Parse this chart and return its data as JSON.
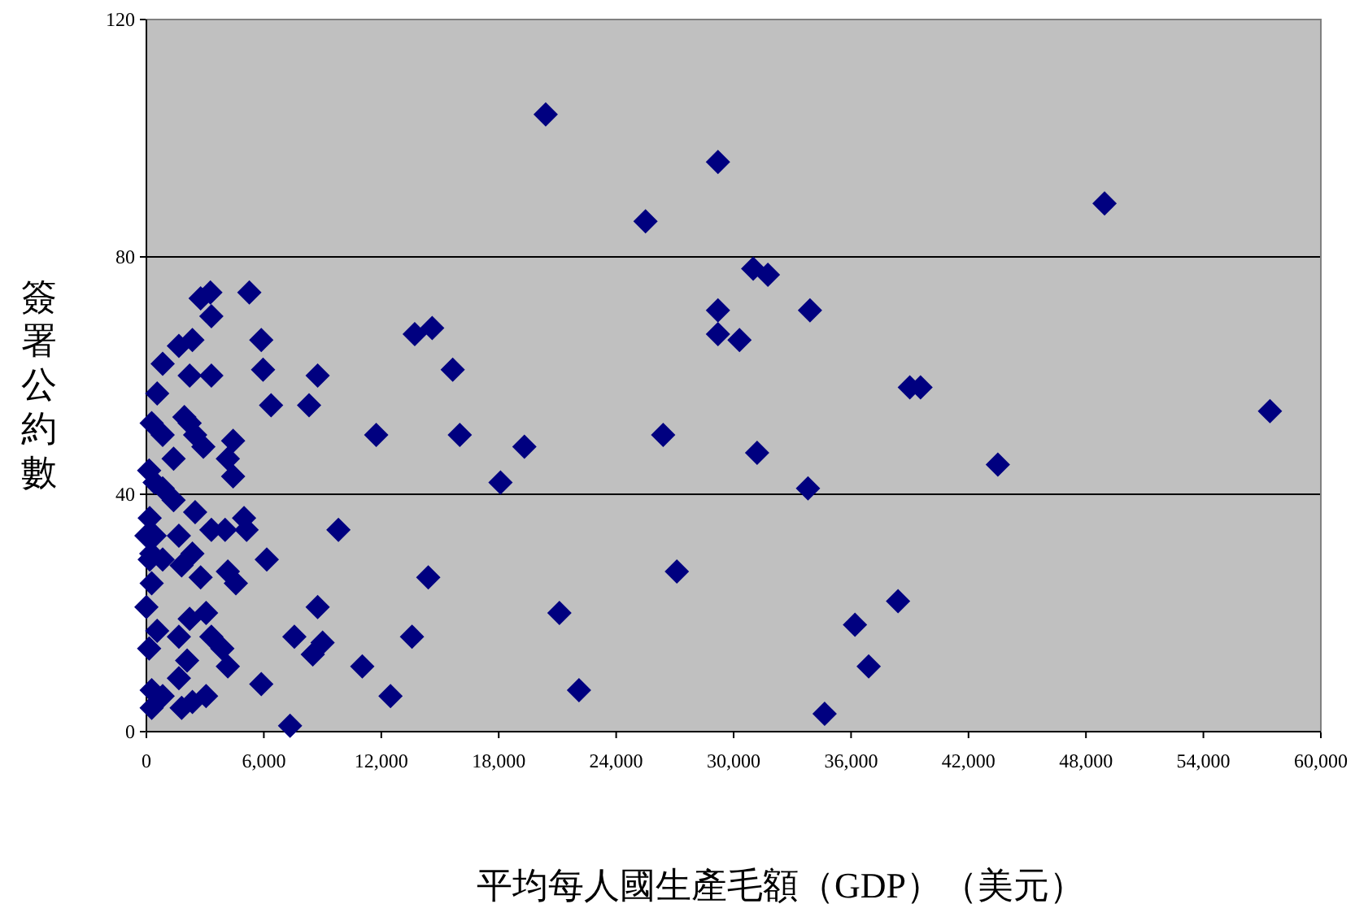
{
  "chart_data": {
    "type": "scatter",
    "xlabel": "平均每人國生產毛額（GDP）（美元）",
    "ylabel": "簽署公約數",
    "color": "#000080",
    "marker": "diamond",
    "grid": "y",
    "xlim": [
      0,
      60000
    ],
    "ylim": [
      0,
      120
    ],
    "xticks": [
      0,
      {
        "value": 6000,
        "label": "6,000"
      },
      {
        "value": 12000,
        "label": "12,000"
      },
      {
        "value": 18000,
        "label": "18,000"
      },
      {
        "value": 24000,
        "label": "24,000"
      },
      {
        "value": 30000,
        "label": "30,000"
      },
      {
        "value": 36000,
        "label": "36,000"
      },
      {
        "value": 42000,
        "label": "42,000"
      },
      {
        "value": 48000,
        "label": "48,000"
      },
      {
        "value": 54000,
        "label": "54,000"
      },
      {
        "value": 60000,
        "label": "60,000"
      }
    ],
    "yticks": [
      0,
      40,
      80,
      120
    ],
    "x": [
      20400,
      29200,
      25500,
      48950,
      31000,
      31750,
      33900,
      29200,
      29200,
      30300,
      39000,
      39550,
      57400,
      26400,
      31200,
      43500,
      33800,
      27100,
      21100,
      36200,
      38400,
      36900,
      22100,
      34650,
      5260,
      5870,
      5960,
      6370,
      8310,
      8750,
      13710,
      14600,
      15650,
      11740,
      16010,
      19310,
      18090,
      9810,
      6150,
      14400,
      8750,
      7560,
      9000,
      8500,
      13570,
      11030,
      5870,
      12470,
      7340,
      4990,
      5120,
      4430,
      4430,
      2770,
      3270,
      3320,
      1660,
      2350,
      830,
      2210,
      3320,
      550,
      270,
      830,
      1940,
      2210,
      2490,
      2910,
      4160,
      1390,
      140,
      420,
      830,
      1390,
      170,
      420,
      250,
      830,
      1660,
      2490,
      3320,
      4020,
      2350,
      1800,
      2770,
      4160,
      4570,
      270,
      0,
      550,
      140,
      2210,
      3050,
      1660,
      3320,
      3880,
      4160,
      2080,
      1660,
      270,
      830,
      270,
      1800,
      2350,
      3050,
      0,
      170
    ],
    "values": [
      104,
      96,
      86,
      89,
      78,
      77,
      71,
      71,
      67,
      66,
      58,
      58,
      54,
      50,
      47,
      45,
      41,
      27,
      20,
      18,
      22,
      11,
      7,
      3,
      74,
      66,
      61,
      55,
      55,
      60,
      67,
      68,
      61,
      50,
      50,
      48,
      42,
      34,
      29,
      26,
      21,
      16,
      15,
      13,
      16,
      11,
      8,
      6,
      1,
      36,
      34,
      49,
      43,
      73,
      74,
      70,
      65,
      66,
      62,
      60,
      60,
      57,
      52,
      50,
      53,
      52,
      50,
      48,
      46,
      46,
      44,
      42,
      41,
      39,
      36,
      33,
      30,
      29,
      33,
      37,
      34,
      34,
      30,
      28,
      26,
      27,
      25,
      25,
      21,
      17,
      14,
      19,
      20,
      16,
      16,
      14,
      11,
      12,
      9,
      7,
      6,
      4,
      4,
      5,
      6,
      33,
      29
    ]
  }
}
